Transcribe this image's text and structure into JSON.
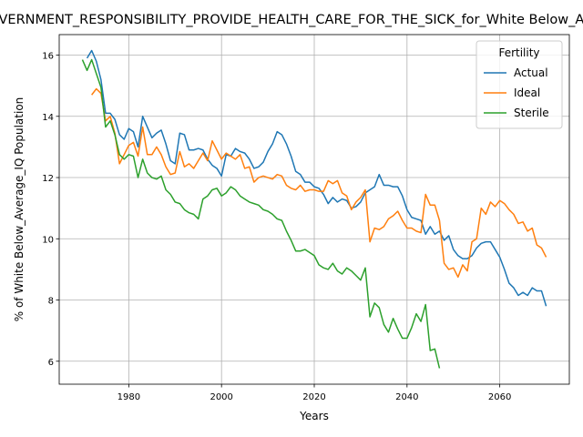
{
  "chart_data": {
    "type": "line",
    "title": "GOVERNMENT_RESPONSIBILITY_PROVIDE_HEALTH_CARE_FOR_THE_SICK_for_White Below_Average_IQ",
    "xlabel": "Years",
    "ylabel": "% of White Below_Average_IQ Population",
    "legend_title": "Fertility",
    "legend_loc": "upper right",
    "grid": true,
    "xlim": [
      1965,
      2075
    ],
    "ylim": [
      5.25,
      16.67
    ],
    "xticks": [
      1980,
      2000,
      2020,
      2040,
      2060
    ],
    "yticks": [
      6,
      8,
      10,
      12,
      14,
      16
    ],
    "x": [
      1970,
      1971,
      1972,
      1973,
      1974,
      1975,
      1976,
      1977,
      1978,
      1979,
      1980,
      1981,
      1982,
      1983,
      1984,
      1985,
      1986,
      1987,
      1988,
      1989,
      1990,
      1991,
      1992,
      1993,
      1994,
      1995,
      1996,
      1997,
      1998,
      1999,
      2000,
      2001,
      2002,
      2003,
      2004,
      2005,
      2006,
      2007,
      2008,
      2009,
      2010,
      2011,
      2012,
      2013,
      2014,
      2015,
      2016,
      2017,
      2018,
      2019,
      2020,
      2021,
      2022,
      2023,
      2024,
      2025,
      2026,
      2027,
      2028,
      2029,
      2030,
      2031,
      2032,
      2033,
      2034,
      2035,
      2036,
      2037,
      2038,
      2039,
      2040,
      2041,
      2042,
      2043,
      2044,
      2045,
      2046,
      2047,
      2048,
      2049,
      2050,
      2051,
      2052,
      2053,
      2054,
      2055,
      2056,
      2057,
      2058,
      2059,
      2060,
      2061,
      2062,
      2063,
      2064,
      2065,
      2066,
      2067,
      2068,
      2069,
      2070
    ],
    "series": [
      {
        "name": "Actual",
        "color": "#1f77b4",
        "values": [
          null,
          15.9,
          16.15,
          15.8,
          15.2,
          14.1,
          14.1,
          13.9,
          13.4,
          13.25,
          13.6,
          13.5,
          13.0,
          14.0,
          13.65,
          13.3,
          13.45,
          13.55,
          13.1,
          12.55,
          12.45,
          13.45,
          13.4,
          12.9,
          12.9,
          12.95,
          12.9,
          12.6,
          12.4,
          12.3,
          12.05,
          12.75,
          12.7,
          12.95,
          12.85,
          12.8,
          12.6,
          12.3,
          12.35,
          12.5,
          12.85,
          13.1,
          13.5,
          13.4,
          13.1,
          12.7,
          12.2,
          12.1,
          11.85,
          11.85,
          11.7,
          11.65,
          11.45,
          11.15,
          11.35,
          11.2,
          11.3,
          11.25,
          11.0,
          11.05,
          11.2,
          11.5,
          11.6,
          11.7,
          12.1,
          11.75,
          11.75,
          11.7,
          11.7,
          11.4,
          10.95,
          10.7,
          10.65,
          10.6,
          10.15,
          10.4,
          10.15,
          10.25,
          9.95,
          10.1,
          9.65,
          9.45,
          9.35,
          9.35,
          9.45,
          9.7,
          9.85,
          9.9,
          9.9,
          9.65,
          9.4,
          9.0,
          8.55,
          8.4,
          8.15,
          8.25,
          8.15,
          8.4,
          8.3,
          8.3,
          7.8
        ]
      },
      {
        "name": "Ideal",
        "color": "#ff7f0e",
        "values": [
          null,
          null,
          14.7,
          14.9,
          14.75,
          13.85,
          14.0,
          13.45,
          12.45,
          12.75,
          13.05,
          13.15,
          12.7,
          13.65,
          12.75,
          12.75,
          13.0,
          12.75,
          12.35,
          12.1,
          12.15,
          12.85,
          12.35,
          12.45,
          12.3,
          12.55,
          12.8,
          12.55,
          13.2,
          12.9,
          12.6,
          12.8,
          12.7,
          12.6,
          12.75,
          12.3,
          12.35,
          11.85,
          12.0,
          12.05,
          12.0,
          11.95,
          12.1,
          12.05,
          11.75,
          11.65,
          11.6,
          11.75,
          11.55,
          11.6,
          11.6,
          11.55,
          11.55,
          11.9,
          11.8,
          11.9,
          11.5,
          11.4,
          10.95,
          11.2,
          11.35,
          11.6,
          9.9,
          10.35,
          10.3,
          10.4,
          10.65,
          10.75,
          10.9,
          10.6,
          10.35,
          10.35,
          10.25,
          10.2,
          11.45,
          11.1,
          11.1,
          10.6,
          9.2,
          9.0,
          9.05,
          8.75,
          9.15,
          8.95,
          9.9,
          10.0,
          11.0,
          10.8,
          11.2,
          11.05,
          11.25,
          11.15,
          10.95,
          10.8,
          10.5,
          10.55,
          10.25,
          10.35,
          9.8,
          9.7,
          9.4
        ]
      },
      {
        "name": "Sterile",
        "color": "#2ca02c",
        "values": [
          15.85,
          15.5,
          15.85,
          15.4,
          14.95,
          13.65,
          13.85,
          13.4,
          12.75,
          12.6,
          12.75,
          12.7,
          12.0,
          12.6,
          12.15,
          12.0,
          11.95,
          12.05,
          11.6,
          11.45,
          11.2,
          11.15,
          10.95,
          10.85,
          10.8,
          10.65,
          11.3,
          11.4,
          11.6,
          11.65,
          11.4,
          11.5,
          11.7,
          11.6,
          11.4,
          11.3,
          11.2,
          11.15,
          11.1,
          10.95,
          10.9,
          10.8,
          10.65,
          10.6,
          10.25,
          9.95,
          9.6,
          9.6,
          9.65,
          9.55,
          9.45,
          9.15,
          9.05,
          9.0,
          9.2,
          8.95,
          8.85,
          9.05,
          8.95,
          8.8,
          8.65,
          9.05,
          7.45,
          7.9,
          7.75,
          7.2,
          6.95,
          7.4,
          7.05,
          6.75,
          6.75,
          7.1,
          7.55,
          7.3,
          7.85,
          6.35,
          6.4,
          5.77,
          null,
          null,
          null,
          null,
          null,
          null,
          null,
          null,
          null,
          null,
          null,
          null,
          null,
          null,
          null,
          null,
          null,
          null,
          null,
          null,
          null,
          null,
          null
        ]
      }
    ]
  }
}
